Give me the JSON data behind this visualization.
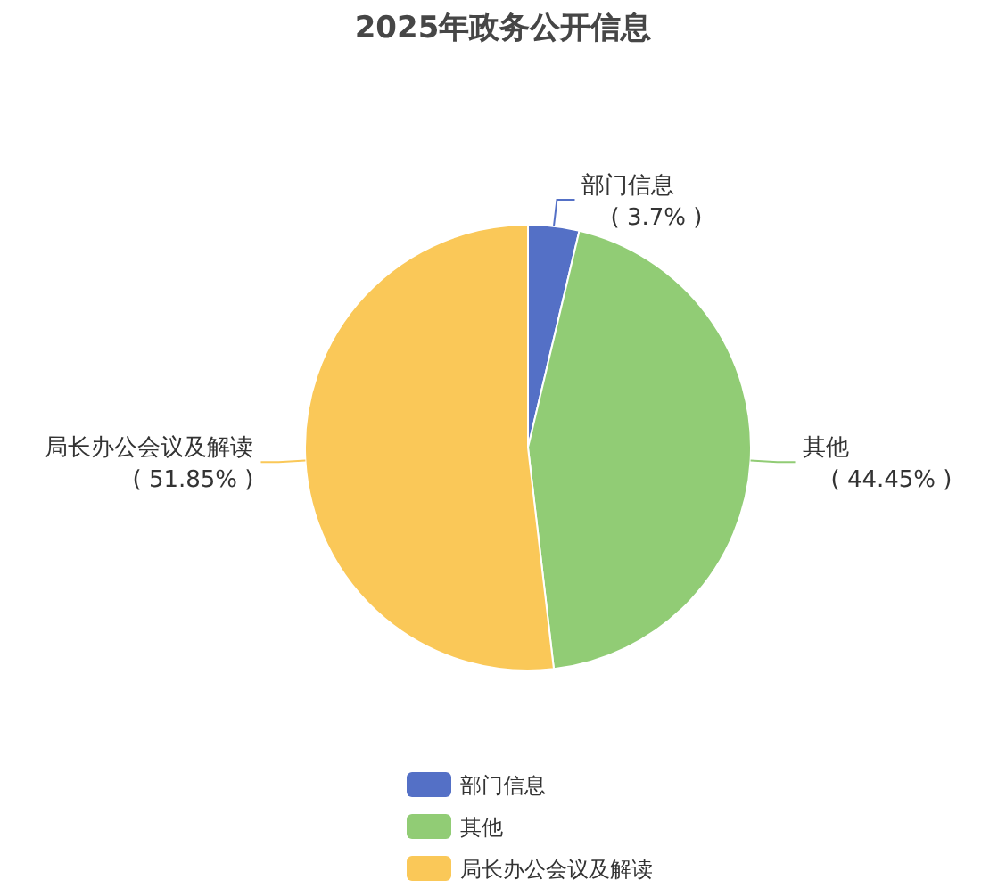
{
  "chart_data": {
    "type": "pie",
    "title": "2025年政务公开信息",
    "categories": [
      "部门信息",
      "其他",
      "局长办公会议及解读"
    ],
    "values": [
      3.7,
      44.45,
      51.85
    ],
    "value_labels": [
      "( 3.7% )",
      "( 44.45% )",
      "( 51.85% )"
    ],
    "colors": [
      "#5470c6",
      "#91cc75",
      "#fac858"
    ],
    "legend": "bottom"
  }
}
